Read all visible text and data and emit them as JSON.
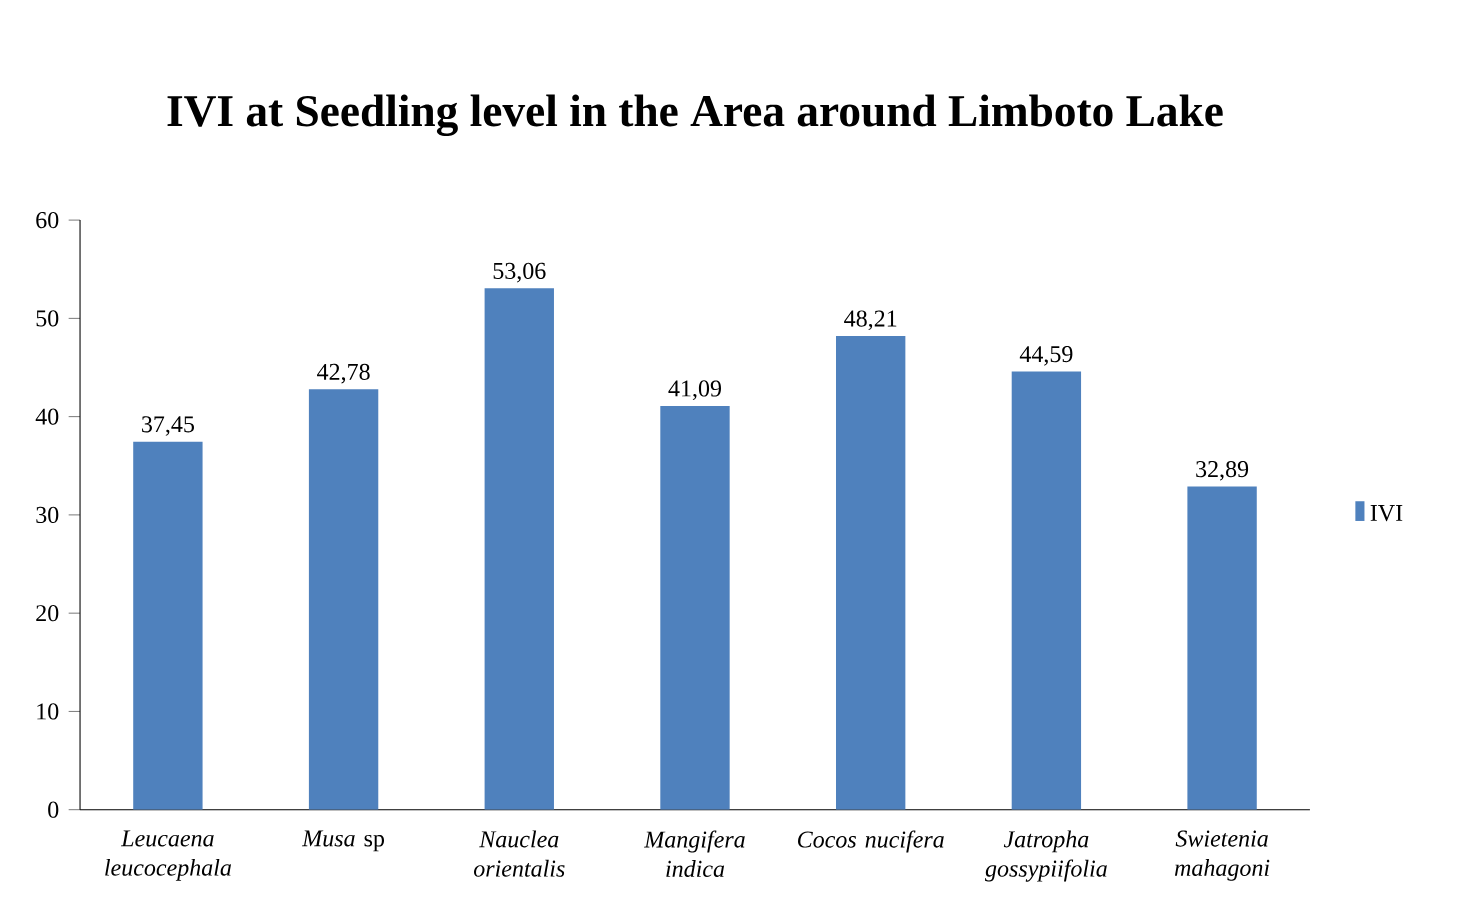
{
  "chart_data": {
    "type": "bar",
    "title": "IVI at Seedling level in the Area around Limboto Lake",
    "categories": [
      "*Leucaena leucocephala*",
      "*Musa* sp",
      "*Nauclea orientalis*",
      "*Mangifera indica*",
      "*Cocos nucifera*",
      "*Jatropha gossypiifolia*",
      "*Swietenia mahagoni*"
    ],
    "series": [
      {
        "name": "IVI",
        "color": "#4f81bd",
        "values": [
          37.45,
          42.78,
          53.06,
          41.09,
          48.21,
          44.59,
          32.89
        ],
        "value_labels": [
          "37,45",
          "42,78",
          "53,06",
          "41,09",
          "48,21",
          "44,59",
          "32,89"
        ]
      }
    ],
    "ylim": [
      0,
      60
    ],
    "yticks": [
      0,
      10,
      20,
      30,
      40,
      50,
      60
    ],
    "legend": "right",
    "grid": false
  }
}
